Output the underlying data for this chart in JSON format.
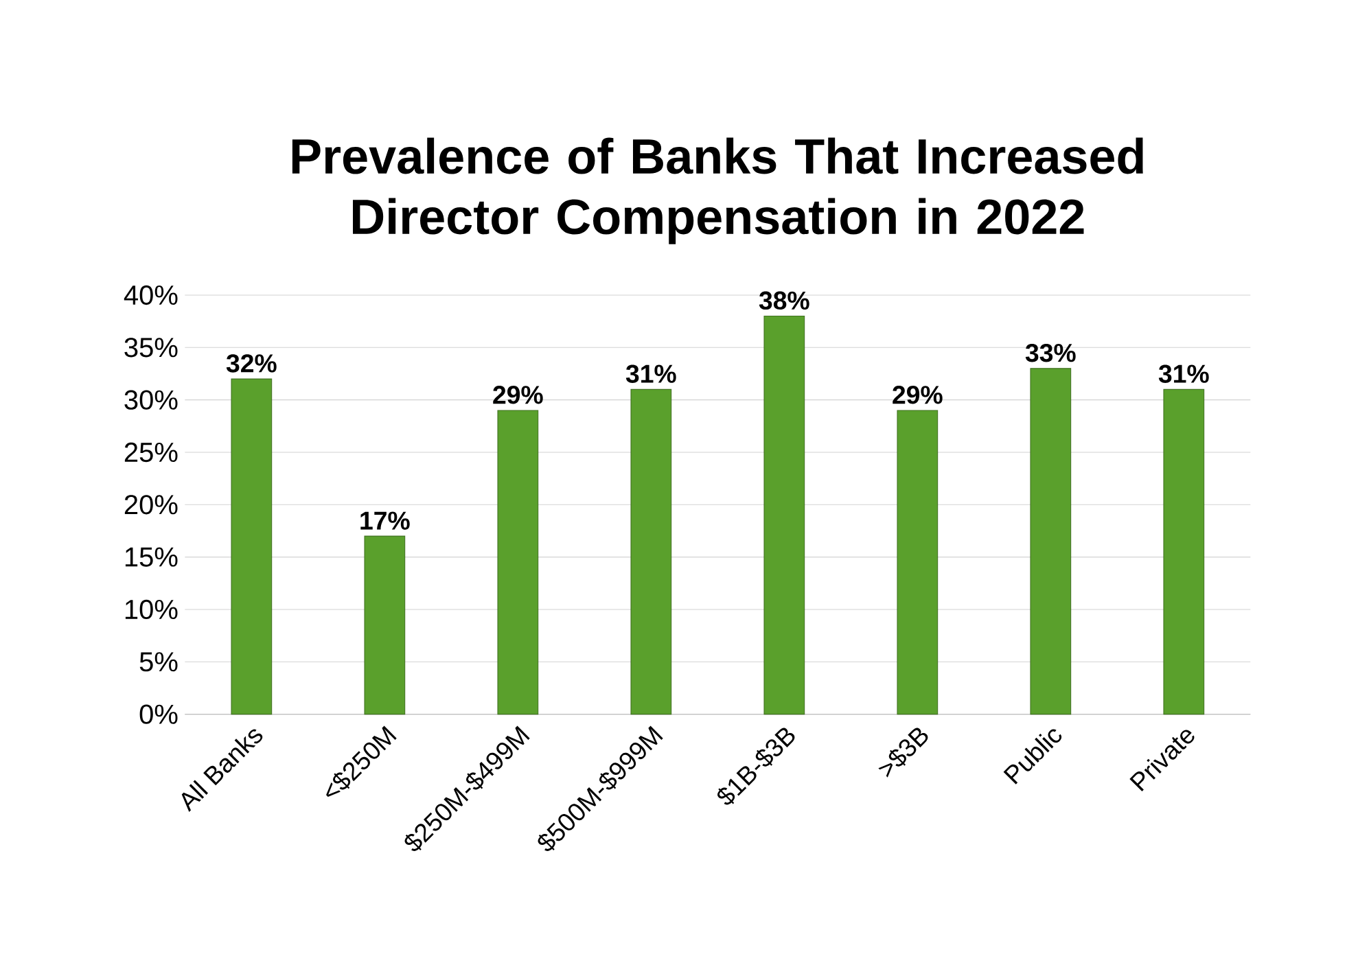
{
  "chart_data": {
    "type": "bar",
    "title": "Prevalence of Banks That Increased Director Compensation in 2022",
    "categories": [
      "All Banks",
      "<$250M",
      "$250M-$499M",
      "$500M-$999M",
      "$1B-$3B",
      ">$3B",
      "Public",
      "Private"
    ],
    "values": [
      32,
      17,
      29,
      31,
      38,
      29,
      33,
      31
    ],
    "value_labels": [
      "32%",
      "17%",
      "29%",
      "31%",
      "38%",
      "29%",
      "33%",
      "31%"
    ],
    "color": "#5aa02c",
    "ylim": [
      0,
      40
    ],
    "yticks": [
      {
        "value": 0,
        "label": "0%"
      },
      {
        "value": 5,
        "label": "5%"
      },
      {
        "value": 10,
        "label": "10%"
      },
      {
        "value": 15,
        "label": "15%"
      },
      {
        "value": 20,
        "label": "20%"
      },
      {
        "value": 25,
        "label": "25%"
      },
      {
        "value": 30,
        "label": "30%"
      },
      {
        "value": 35,
        "label": "35%"
      },
      {
        "value": 40,
        "label": "40%"
      }
    ],
    "grid": "y"
  }
}
